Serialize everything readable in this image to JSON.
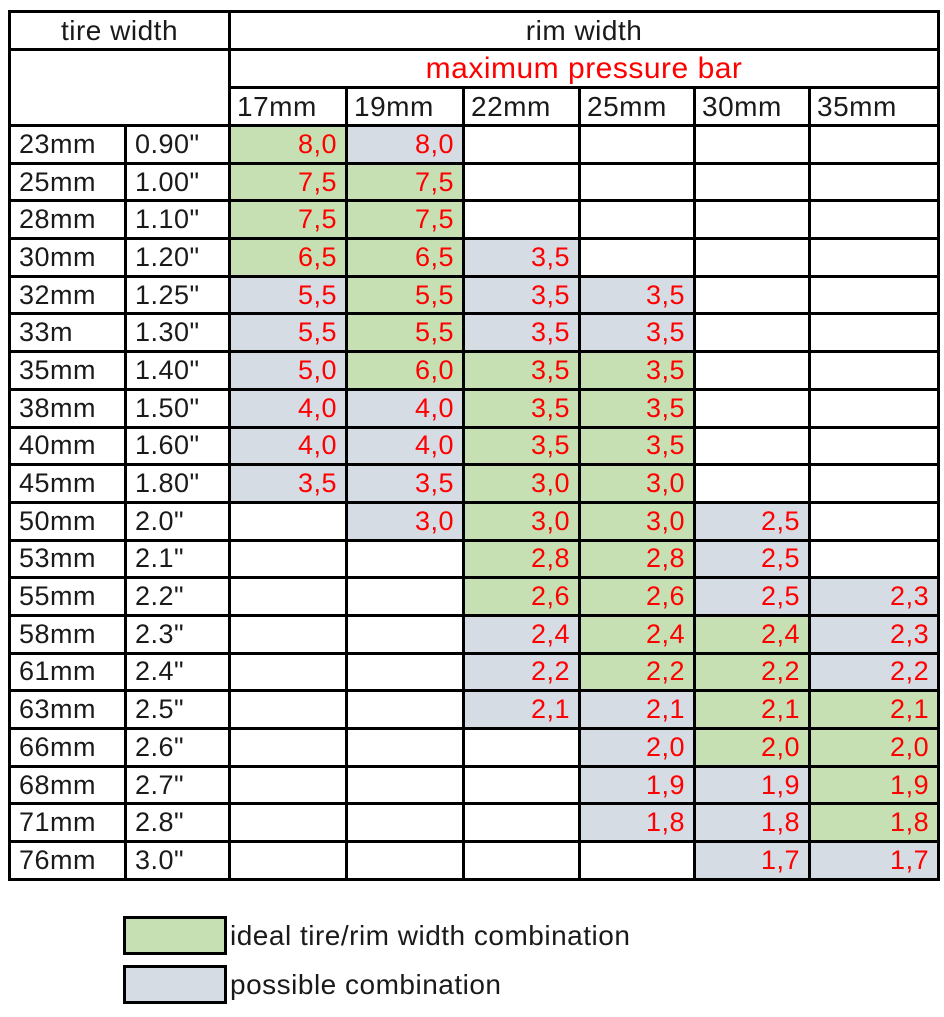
{
  "colors": {
    "ideal": "#c6e0b4",
    "possible": "#d6dce4",
    "value_text": "#fe0000",
    "border": "#000000"
  },
  "table": {
    "tire_width_header": "tire width",
    "rim_width_header": "rim width",
    "pressure_header": "maximum pressure bar",
    "rim_columns": [
      "17mm",
      "19mm",
      "22mm",
      "25mm",
      "30mm",
      "35mm"
    ],
    "rows": [
      {
        "mm": "23mm",
        "inch": "0.90\"",
        "values": [
          {
            "v": "8,0",
            "k": "ideal"
          },
          {
            "v": "8,0",
            "k": "possible"
          },
          null,
          null,
          null,
          null
        ]
      },
      {
        "mm": "25mm",
        "inch": "1.00\"",
        "values": [
          {
            "v": "7,5",
            "k": "ideal"
          },
          {
            "v": "7,5",
            "k": "ideal"
          },
          null,
          null,
          null,
          null
        ]
      },
      {
        "mm": "28mm",
        "inch": "1.10\"",
        "values": [
          {
            "v": "7,5",
            "k": "ideal"
          },
          {
            "v": "7,5",
            "k": "ideal"
          },
          null,
          null,
          null,
          null
        ]
      },
      {
        "mm": "30mm",
        "inch": "1.20\"",
        "values": [
          {
            "v": "6,5",
            "k": "ideal"
          },
          {
            "v": "6,5",
            "k": "ideal"
          },
          {
            "v": "3,5",
            "k": "possible"
          },
          null,
          null,
          null
        ]
      },
      {
        "mm": "32mm",
        "inch": "1.25\"",
        "values": [
          {
            "v": "5,5",
            "k": "possible"
          },
          {
            "v": "5,5",
            "k": "ideal"
          },
          {
            "v": "3,5",
            "k": "possible"
          },
          {
            "v": "3,5",
            "k": "possible"
          },
          null,
          null
        ]
      },
      {
        "mm": "33m",
        "inch": "1.30\"",
        "values": [
          {
            "v": "5,5",
            "k": "possible"
          },
          {
            "v": "5,5",
            "k": "ideal"
          },
          {
            "v": "3,5",
            "k": "possible"
          },
          {
            "v": "3,5",
            "k": "possible"
          },
          null,
          null
        ]
      },
      {
        "mm": "35mm",
        "inch": "1.40\"",
        "values": [
          {
            "v": "5,0",
            "k": "possible"
          },
          {
            "v": "6,0",
            "k": "ideal"
          },
          {
            "v": "3,5",
            "k": "ideal"
          },
          {
            "v": "3,5",
            "k": "ideal"
          },
          null,
          null
        ]
      },
      {
        "mm": "38mm",
        "inch": "1.50\"",
        "values": [
          {
            "v": "4,0",
            "k": "possible"
          },
          {
            "v": "4,0",
            "k": "possible"
          },
          {
            "v": "3,5",
            "k": "ideal"
          },
          {
            "v": "3,5",
            "k": "ideal"
          },
          null,
          null
        ]
      },
      {
        "mm": "40mm",
        "inch": "1.60\"",
        "values": [
          {
            "v": "4,0",
            "k": "possible"
          },
          {
            "v": "4,0",
            "k": "possible"
          },
          {
            "v": "3,5",
            "k": "ideal"
          },
          {
            "v": "3,5",
            "k": "ideal"
          },
          null,
          null
        ]
      },
      {
        "mm": "45mm",
        "inch": "1.80\"",
        "values": [
          {
            "v": "3,5",
            "k": "possible"
          },
          {
            "v": "3,5",
            "k": "possible"
          },
          {
            "v": "3,0",
            "k": "ideal"
          },
          {
            "v": "3,0",
            "k": "ideal"
          },
          null,
          null
        ]
      },
      {
        "mm": "50mm",
        "inch": "2.0\"",
        "values": [
          null,
          {
            "v": "3,0",
            "k": "possible"
          },
          {
            "v": "3,0",
            "k": "ideal"
          },
          {
            "v": "3,0",
            "k": "ideal"
          },
          {
            "v": "2,5",
            "k": "possible"
          },
          null
        ]
      },
      {
        "mm": "53mm",
        "inch": "2.1\"",
        "values": [
          null,
          null,
          {
            "v": "2,8",
            "k": "ideal"
          },
          {
            "v": "2,8",
            "k": "ideal"
          },
          {
            "v": "2,5",
            "k": "possible"
          },
          null
        ]
      },
      {
        "mm": "55mm",
        "inch": "2.2\"",
        "values": [
          null,
          null,
          {
            "v": "2,6",
            "k": "ideal"
          },
          {
            "v": "2,6",
            "k": "ideal"
          },
          {
            "v": "2,5",
            "k": "possible"
          },
          {
            "v": "2,3",
            "k": "possible"
          }
        ]
      },
      {
        "mm": "58mm",
        "inch": "2.3\"",
        "values": [
          null,
          null,
          {
            "v": "2,4",
            "k": "possible"
          },
          {
            "v": "2,4",
            "k": "ideal"
          },
          {
            "v": "2,4",
            "k": "ideal"
          },
          {
            "v": "2,3",
            "k": "possible"
          }
        ]
      },
      {
        "mm": "61mm",
        "inch": "2.4\"",
        "values": [
          null,
          null,
          {
            "v": "2,2",
            "k": "possible"
          },
          {
            "v": "2,2",
            "k": "ideal"
          },
          {
            "v": "2,2",
            "k": "ideal"
          },
          {
            "v": "2,2",
            "k": "possible"
          }
        ]
      },
      {
        "mm": "63mm",
        "inch": "2.5\"",
        "values": [
          null,
          null,
          {
            "v": "2,1",
            "k": "possible"
          },
          {
            "v": "2,1",
            "k": "possible"
          },
          {
            "v": "2,1",
            "k": "ideal"
          },
          {
            "v": "2,1",
            "k": "ideal"
          }
        ]
      },
      {
        "mm": "66mm",
        "inch": "2.6\"",
        "values": [
          null,
          null,
          null,
          {
            "v": "2,0",
            "k": "possible"
          },
          {
            "v": "2,0",
            "k": "ideal"
          },
          {
            "v": "2,0",
            "k": "ideal"
          }
        ]
      },
      {
        "mm": "68mm",
        "inch": "2.7\"",
        "values": [
          null,
          null,
          null,
          {
            "v": "1,9",
            "k": "possible"
          },
          {
            "v": "1,9",
            "k": "possible"
          },
          {
            "v": "1,9",
            "k": "ideal"
          }
        ]
      },
      {
        "mm": "71mm",
        "inch": "2.8\"",
        "values": [
          null,
          null,
          null,
          {
            "v": "1,8",
            "k": "possible"
          },
          {
            "v": "1,8",
            "k": "possible"
          },
          {
            "v": "1,8",
            "k": "ideal"
          }
        ]
      },
      {
        "mm": "76mm",
        "inch": "3.0\"",
        "values": [
          null,
          null,
          null,
          null,
          {
            "v": "1,7",
            "k": "possible"
          },
          {
            "v": "1,7",
            "k": "possible"
          }
        ]
      }
    ]
  },
  "legend": {
    "ideal_label": "ideal tire/rim width combination",
    "possible_label": "possible combination"
  }
}
